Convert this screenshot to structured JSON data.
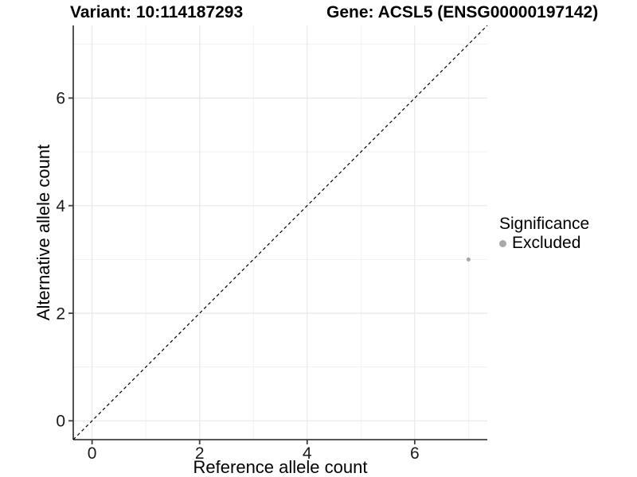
{
  "chart_data": {
    "type": "scatter",
    "titles": {
      "left": "Variant: 10:114187293",
      "right": "Gene: ACSL5 (ENSG00000197142)"
    },
    "xlabel": "Reference allele count",
    "ylabel": "Alternative allele count",
    "xlim": [
      -0.35,
      7.35
    ],
    "ylim": [
      -0.35,
      7.35
    ],
    "x_major_ticks": [
      0,
      2,
      4,
      6
    ],
    "y_major_ticks": [
      0,
      2,
      4,
      6
    ],
    "x_minor_ticks": [
      1,
      3,
      5,
      7
    ],
    "y_minor_ticks": [
      1,
      3,
      5,
      7
    ],
    "grid": "on",
    "identity_line": {
      "slope": 1,
      "intercept": 0,
      "style": "dashed",
      "color": "#000000"
    },
    "series": [
      {
        "name": "Excluded",
        "color": "#a9a9a9",
        "point_radius": 2.6,
        "points": [
          {
            "x": 7,
            "y": 3
          }
        ]
      }
    ],
    "legend": {
      "title": "Significance",
      "position": "right",
      "items": [
        {
          "label": "Excluded",
          "color": "#a9a9a9"
        }
      ]
    },
    "colors": {
      "axis": "#3f3f3f",
      "tick_text": "#1a1a1a",
      "grid_major": "#e8e8e8",
      "grid_minor": "#f1f1f1",
      "background": "#ffffff"
    }
  }
}
